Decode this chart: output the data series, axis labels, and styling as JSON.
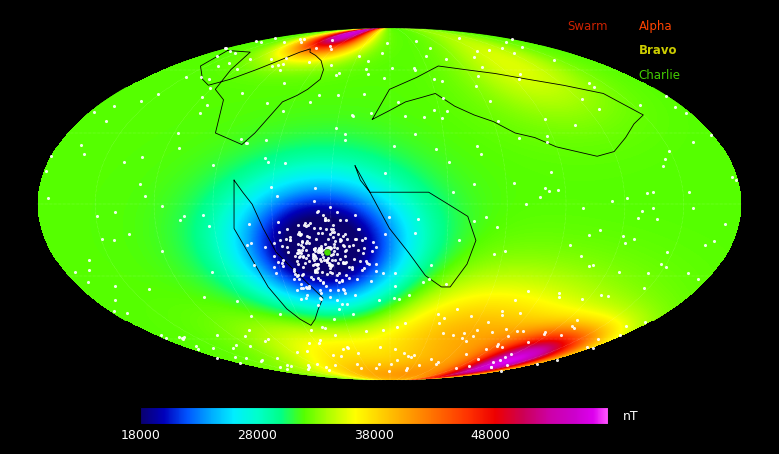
{
  "background_color": "#000000",
  "colorbar": {
    "vmin": 18000,
    "vmax": 58000,
    "ticks": [
      18000,
      28000,
      38000,
      48000
    ],
    "label": "nT"
  },
  "legend": {
    "swarm_label": "Swarm",
    "swarm_color": "#cc2200",
    "alpha_label": "Alpha",
    "alpha_color": "#ff4400",
    "bravo_label": "Bravo",
    "bravo_color": "#cccc00",
    "charlie_label": "Charlie",
    "charlie_color": "#44cc00"
  },
  "colormap_nodes": [
    [
      0.0,
      "#0a006e"
    ],
    [
      0.05,
      "#0000bb"
    ],
    [
      0.1,
      "#0055ff"
    ],
    [
      0.15,
      "#00aaff"
    ],
    [
      0.2,
      "#00eeff"
    ],
    [
      0.25,
      "#00ffcc"
    ],
    [
      0.3,
      "#00ff88"
    ],
    [
      0.35,
      "#55ff00"
    ],
    [
      0.4,
      "#aaff00"
    ],
    [
      0.46,
      "#ffff00"
    ],
    [
      0.52,
      "#ffcc00"
    ],
    [
      0.58,
      "#ff9900"
    ],
    [
      0.64,
      "#ff6600"
    ],
    [
      0.7,
      "#ff3300"
    ],
    [
      0.76,
      "#ee0000"
    ],
    [
      0.82,
      "#cc0055"
    ],
    [
      0.88,
      "#cc00aa"
    ],
    [
      0.93,
      "#cc00cc"
    ],
    [
      0.97,
      "#dd00ee"
    ],
    [
      1.0,
      "#ff55ff"
    ]
  ]
}
